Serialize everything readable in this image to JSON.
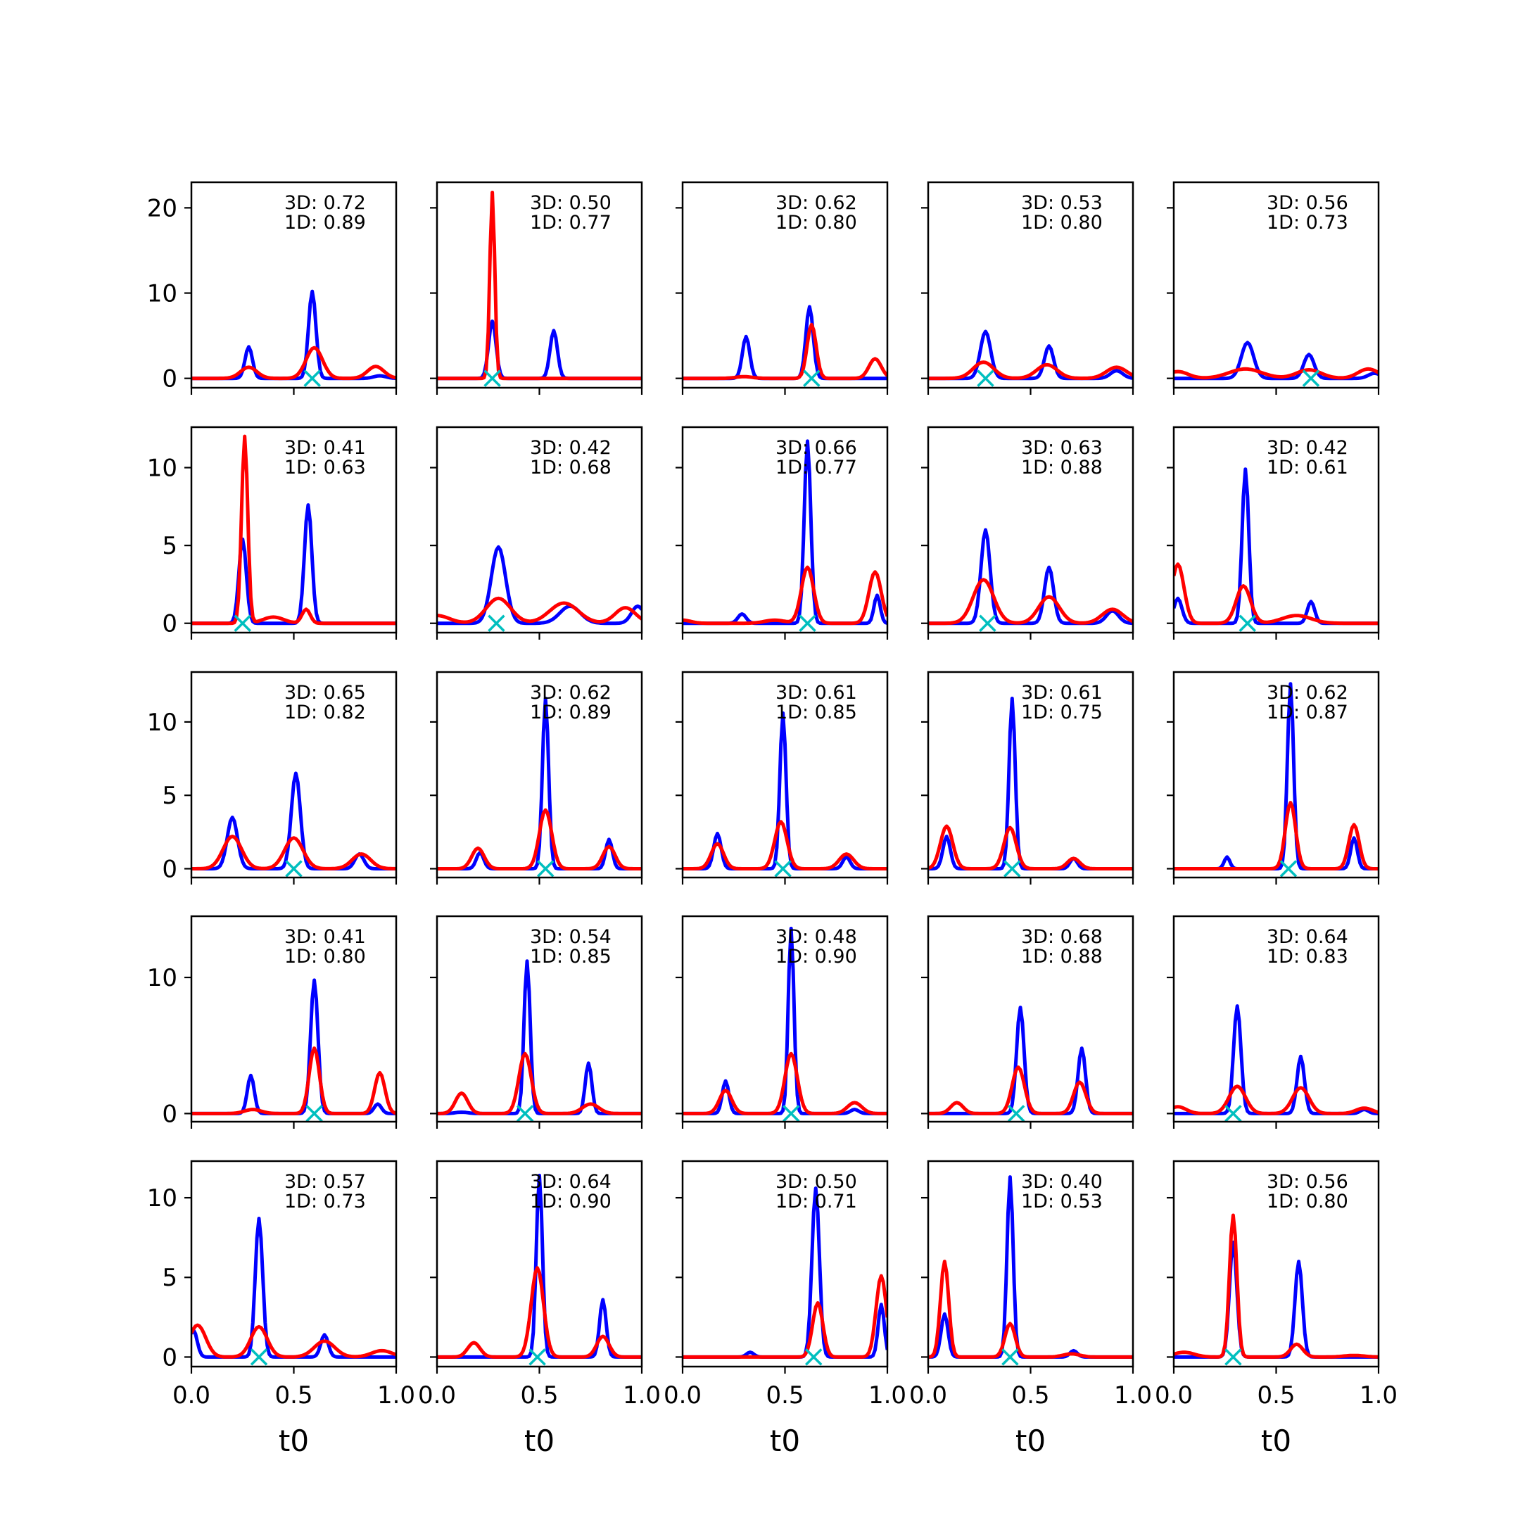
{
  "chart_data": {
    "type": "line",
    "layout": "5x5 grid of small-multiple line plots",
    "xlabel": "t0",
    "xlim": [
      0,
      1
    ],
    "x_ticks": [
      0.0,
      0.5,
      1.0
    ],
    "x_tick_labels": [
      "0.0",
      "0.5",
      "1.0"
    ],
    "colors": {
      "blue": "#0000ff",
      "red": "#ff0000",
      "marker": "#00bfbf"
    },
    "series_names": [
      "3D",
      "1D"
    ],
    "row_ylims": [
      [
        -1.1,
        23
      ],
      [
        -0.6,
        12.6
      ],
      [
        -0.6,
        13.4
      ],
      [
        -0.6,
        14.5
      ],
      [
        -0.6,
        12.3
      ]
    ],
    "row_yticks": [
      [
        0,
        10,
        20
      ],
      [
        0,
        5,
        10
      ],
      [
        0,
        5,
        10
      ],
      [
        0,
        10
      ],
      [
        0,
        5,
        10
      ]
    ],
    "panels": [
      {
        "annot": {
          "line1": "3D: 0.72",
          "line2": "1D: 0.89"
        },
        "marker_x": 0.59,
        "blue": [
          [
            0.28,
            3.7,
            0.018
          ],
          [
            0.59,
            10.2,
            0.018
          ],
          [
            0.92,
            0.3,
            0.03
          ]
        ],
        "red": [
          [
            0.28,
            1.3,
            0.04
          ],
          [
            0.6,
            3.6,
            0.04
          ],
          [
            0.9,
            1.4,
            0.04
          ]
        ]
      },
      {
        "annot": {
          "line1": "3D: 0.50",
          "line2": "1D: 0.77"
        },
        "marker_x": 0.27,
        "blue": [
          [
            0.27,
            6.7,
            0.018
          ],
          [
            0.57,
            5.6,
            0.018
          ]
        ],
        "red": [
          [
            0.27,
            21.8,
            0.012
          ]
        ]
      },
      {
        "annot": {
          "line1": "3D: 0.62",
          "line2": "1D: 0.80"
        },
        "marker_x": 0.63,
        "blue": [
          [
            0.31,
            4.9,
            0.018
          ],
          [
            0.62,
            8.4,
            0.018
          ]
        ],
        "red": [
          [
            0.3,
            0.2,
            0.04
          ],
          [
            0.63,
            6.3,
            0.022
          ],
          [
            0.94,
            2.3,
            0.03
          ]
        ]
      },
      {
        "annot": {
          "line1": "3D: 0.53",
          "line2": "1D: 0.80"
        },
        "marker_x": 0.28,
        "blue": [
          [
            0.28,
            5.5,
            0.025
          ],
          [
            0.59,
            3.8,
            0.022
          ],
          [
            0.92,
            0.9,
            0.03
          ]
        ],
        "red": [
          [
            0.27,
            1.9,
            0.05
          ],
          [
            0.58,
            1.6,
            0.05
          ],
          [
            0.92,
            1.3,
            0.05
          ]
        ]
      },
      {
        "annot": {
          "line1": "3D: 0.56",
          "line2": "1D: 0.73"
        },
        "marker_x": 0.67,
        "blue": [
          [
            0.36,
            4.2,
            0.03
          ],
          [
            0.66,
            2.8,
            0.025
          ],
          [
            0.98,
            0.6,
            0.03
          ]
        ],
        "red": [
          [
            0.02,
            0.8,
            0.05
          ],
          [
            0.35,
            1.1,
            0.08
          ],
          [
            0.66,
            1.0,
            0.06
          ],
          [
            0.95,
            1.1,
            0.05
          ]
        ]
      },
      {
        "annot": {
          "line1": "3D: 0.41",
          "line2": "1D: 0.63"
        },
        "marker_x": 0.25,
        "blue": [
          [
            0.25,
            5.4,
            0.018
          ],
          [
            0.57,
            7.6,
            0.018
          ]
        ],
        "red": [
          [
            0.26,
            12.0,
            0.015
          ],
          [
            0.56,
            0.9,
            0.02
          ],
          [
            0.4,
            0.4,
            0.05
          ]
        ]
      },
      {
        "annot": {
          "line1": "3D: 0.42",
          "line2": "1D: 0.68"
        },
        "marker_x": 0.29,
        "blue": [
          [
            0.3,
            4.9,
            0.035
          ],
          [
            0.65,
            1.1,
            0.05
          ],
          [
            0.98,
            1.1,
            0.03
          ]
        ],
        "red": [
          [
            0.0,
            0.5,
            0.06
          ],
          [
            0.3,
            1.6,
            0.06
          ],
          [
            0.62,
            1.3,
            0.07
          ],
          [
            0.92,
            1.0,
            0.05
          ]
        ]
      },
      {
        "annot": {
          "line1": "3D: 0.66",
          "line2": "1D: 0.77"
        },
        "marker_x": 0.61,
        "blue": [
          [
            0.29,
            0.6,
            0.02
          ],
          [
            0.61,
            11.7,
            0.016
          ],
          [
            0.95,
            1.8,
            0.015
          ]
        ],
        "red": [
          [
            0.0,
            0.2,
            0.04
          ],
          [
            0.61,
            3.6,
            0.03
          ],
          [
            0.94,
            3.3,
            0.03
          ],
          [
            0.45,
            0.2,
            0.05
          ]
        ]
      },
      {
        "annot": {
          "line1": "3D: 0.63",
          "line2": "1D: 0.88"
        },
        "marker_x": 0.29,
        "blue": [
          [
            0.28,
            6.0,
            0.022
          ],
          [
            0.59,
            3.6,
            0.022
          ],
          [
            0.9,
            0.8,
            0.03
          ]
        ],
        "red": [
          [
            0.27,
            2.8,
            0.05
          ],
          [
            0.59,
            1.7,
            0.05
          ],
          [
            0.9,
            0.9,
            0.05
          ]
        ]
      },
      {
        "annot": {
          "line1": "3D: 0.42",
          "line2": "1D: 0.61"
        },
        "marker_x": 0.36,
        "blue": [
          [
            0.02,
            1.6,
            0.02
          ],
          [
            0.35,
            9.9,
            0.016
          ],
          [
            0.67,
            1.4,
            0.018
          ]
        ],
        "red": [
          [
            0.02,
            3.8,
            0.03
          ],
          [
            0.34,
            2.4,
            0.035
          ],
          [
            0.6,
            0.5,
            0.07
          ]
        ]
      },
      {
        "annot": {
          "line1": "3D: 0.65",
          "line2": "1D: 0.82"
        },
        "marker_x": 0.5,
        "blue": [
          [
            0.2,
            3.5,
            0.025
          ],
          [
            0.51,
            6.5,
            0.022
          ],
          [
            0.82,
            1.0,
            0.022
          ]
        ],
        "red": [
          [
            0.2,
            2.2,
            0.045
          ],
          [
            0.5,
            2.1,
            0.045
          ],
          [
            0.83,
            1.0,
            0.045
          ]
        ]
      },
      {
        "annot": {
          "line1": "3D: 0.62",
          "line2": "1D: 0.89"
        },
        "marker_x": 0.53,
        "blue": [
          [
            0.21,
            1.1,
            0.018
          ],
          [
            0.53,
            11.6,
            0.015
          ],
          [
            0.84,
            2.0,
            0.016
          ]
        ],
        "red": [
          [
            0.2,
            1.4,
            0.03
          ],
          [
            0.53,
            4.0,
            0.03
          ],
          [
            0.84,
            1.5,
            0.03
          ]
        ]
      },
      {
        "annot": {
          "line1": "3D: 0.61",
          "line2": "1D: 0.85"
        },
        "marker_x": 0.49,
        "blue": [
          [
            0.17,
            2.4,
            0.018
          ],
          [
            0.49,
            10.6,
            0.015
          ],
          [
            0.8,
            0.8,
            0.018
          ]
        ],
        "red": [
          [
            0.17,
            1.7,
            0.03
          ],
          [
            0.48,
            3.2,
            0.03
          ],
          [
            0.8,
            1.0,
            0.035
          ]
        ]
      },
      {
        "annot": {
          "line1": "3D: 0.61",
          "line2": "1D: 0.75"
        },
        "marker_x": 0.41,
        "blue": [
          [
            0.09,
            2.2,
            0.018
          ],
          [
            0.41,
            11.6,
            0.015
          ],
          [
            0.71,
            0.7,
            0.018
          ]
        ],
        "red": [
          [
            0.09,
            2.9,
            0.03
          ],
          [
            0.4,
            2.8,
            0.03
          ],
          [
            0.71,
            0.7,
            0.03
          ]
        ]
      },
      {
        "annot": {
          "line1": "3D: 0.62",
          "line2": "1D: 0.87"
        },
        "marker_x": 0.56,
        "blue": [
          [
            0.26,
            0.8,
            0.014
          ],
          [
            0.57,
            12.6,
            0.015
          ],
          [
            0.88,
            2.1,
            0.016
          ]
        ],
        "red": [
          [
            0.57,
            4.5,
            0.025
          ],
          [
            0.88,
            3.0,
            0.025
          ]
        ]
      },
      {
        "annot": {
          "line1": "3D: 0.41",
          "line2": "1D: 0.80"
        },
        "marker_x": 0.6,
        "blue": [
          [
            0.29,
            2.8,
            0.017
          ],
          [
            0.6,
            9.8,
            0.018
          ],
          [
            0.91,
            0.7,
            0.018
          ]
        ],
        "red": [
          [
            0.3,
            0.3,
            0.04
          ],
          [
            0.6,
            4.8,
            0.025
          ],
          [
            0.92,
            3.0,
            0.025
          ]
        ]
      },
      {
        "annot": {
          "line1": "3D: 0.54",
          "line2": "1D: 0.85"
        },
        "marker_x": 0.43,
        "blue": [
          [
            0.44,
            11.2,
            0.015
          ],
          [
            0.74,
            3.7,
            0.016
          ],
          [
            0.12,
            0.1,
            0.03
          ]
        ],
        "red": [
          [
            0.12,
            1.5,
            0.03
          ],
          [
            0.43,
            4.4,
            0.03
          ],
          [
            0.75,
            0.7,
            0.04
          ]
        ]
      },
      {
        "annot": {
          "line1": "3D: 0.48",
          "line2": "1D: 0.90"
        },
        "marker_x": 0.53,
        "blue": [
          [
            0.21,
            2.4,
            0.016
          ],
          [
            0.53,
            13.6,
            0.014
          ],
          [
            0.84,
            0.3,
            0.02
          ]
        ],
        "red": [
          [
            0.21,
            1.7,
            0.03
          ],
          [
            0.53,
            4.4,
            0.03
          ],
          [
            0.84,
            0.8,
            0.035
          ]
        ]
      },
      {
        "annot": {
          "line1": "3D: 0.68",
          "line2": "1D: 0.88"
        },
        "marker_x": 0.43,
        "blue": [
          [
            0.45,
            7.8,
            0.018
          ],
          [
            0.75,
            4.8,
            0.018
          ]
        ],
        "red": [
          [
            0.14,
            0.8,
            0.03
          ],
          [
            0.44,
            3.4,
            0.03
          ],
          [
            0.74,
            2.3,
            0.03
          ]
        ]
      },
      {
        "annot": {
          "line1": "3D: 0.64",
          "line2": "1D: 0.83"
        },
        "marker_x": 0.29,
        "blue": [
          [
            0.31,
            7.9,
            0.018
          ],
          [
            0.62,
            4.2,
            0.018
          ],
          [
            0.93,
            0.3,
            0.02
          ]
        ],
        "red": [
          [
            0.02,
            0.5,
            0.04
          ],
          [
            0.31,
            2.0,
            0.04
          ],
          [
            0.62,
            1.9,
            0.04
          ],
          [
            0.93,
            0.4,
            0.04
          ]
        ]
      },
      {
        "annot": {
          "line1": "3D: 0.57",
          "line2": "1D: 0.73"
        },
        "marker_x": 0.33,
        "blue": [
          [
            0.01,
            1.7,
            0.018
          ],
          [
            0.33,
            8.7,
            0.018
          ],
          [
            0.65,
            1.4,
            0.018
          ]
        ],
        "red": [
          [
            0.03,
            2.0,
            0.04
          ],
          [
            0.33,
            1.9,
            0.04
          ],
          [
            0.65,
            1.0,
            0.05
          ],
          [
            0.93,
            0.4,
            0.05
          ]
        ]
      },
      {
        "annot": {
          "line1": "3D: 0.64",
          "line2": "1D: 0.90"
        },
        "marker_x": 0.49,
        "blue": [
          [
            0.5,
            11.4,
            0.015
          ],
          [
            0.81,
            3.6,
            0.016
          ]
        ],
        "red": [
          [
            0.18,
            0.9,
            0.03
          ],
          [
            0.49,
            5.6,
            0.03
          ],
          [
            0.81,
            1.3,
            0.03
          ]
        ]
      },
      {
        "annot": {
          "line1": "3D: 0.50",
          "line2": "1D: 0.71"
        },
        "marker_x": 0.64,
        "blue": [
          [
            0.33,
            0.3,
            0.018
          ],
          [
            0.65,
            10.6,
            0.018
          ],
          [
            0.97,
            3.3,
            0.015
          ]
        ],
        "red": [
          [
            0.66,
            3.4,
            0.025
          ],
          [
            0.97,
            5.1,
            0.025
          ]
        ]
      },
      {
        "annot": {
          "line1": "3D: 0.40",
          "line2": "1D: 0.53"
        },
        "marker_x": 0.4,
        "blue": [
          [
            0.08,
            2.7,
            0.017
          ],
          [
            0.4,
            11.3,
            0.015
          ],
          [
            0.71,
            0.4,
            0.018
          ]
        ],
        "red": [
          [
            0.08,
            6.0,
            0.02
          ],
          [
            0.4,
            2.1,
            0.025
          ],
          [
            0.7,
            0.2,
            0.04
          ]
        ]
      },
      {
        "annot": {
          "line1": "3D: 0.56",
          "line2": "1D: 0.80"
        },
        "marker_x": 0.29,
        "blue": [
          [
            0.29,
            7.2,
            0.018
          ],
          [
            0.61,
            6.0,
            0.018
          ]
        ],
        "red": [
          [
            0.29,
            8.9,
            0.018
          ],
          [
            0.6,
            0.8,
            0.03
          ],
          [
            0.05,
            0.3,
            0.05
          ],
          [
            0.88,
            0.1,
            0.05
          ]
        ]
      }
    ]
  }
}
